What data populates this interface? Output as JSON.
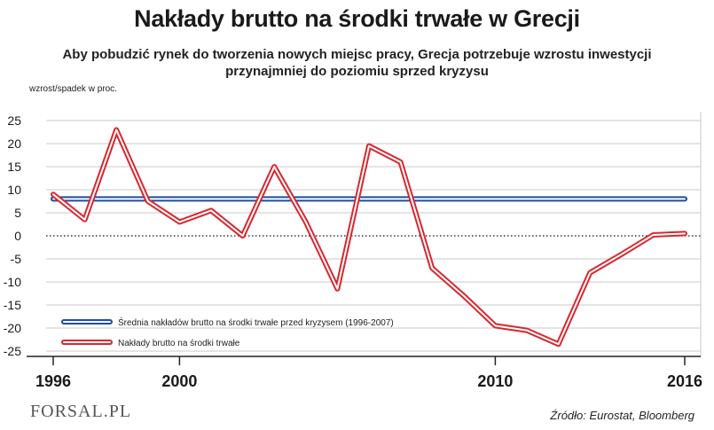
{
  "title": "Nakłady brutto na środki trwałe w Grecji",
  "subtitle": {
    "line1": "Aby pobudzić rynek do tworzenia nowych miejsc pracy, Grecja potrzebuje wzrostu inwestycji",
    "line2": "przynajmniej do poziomiu sprzed kryzysu"
  },
  "logo": "FORSAL.PL",
  "source": "Źródło:  Eurostat, Bloomberg",
  "colors": {
    "series": "#d7282f",
    "average": "#1f4e99",
    "grid": "#c8c8c8"
  },
  "chart_data": {
    "type": "line",
    "ylabel": "wzrost/spadek w proc.",
    "ylim": [
      -25,
      25
    ],
    "yticks": [
      25,
      20,
      15,
      10,
      5,
      0,
      -5,
      -10,
      -15,
      -20,
      -25
    ],
    "xlim": [
      1996,
      2016
    ],
    "xticks": [
      1996,
      2000,
      2010,
      2016
    ],
    "grid": true,
    "zero_line": "dotted",
    "legend_position": "bottom-left",
    "series": [
      {
        "name": "Średnia nakładów brutto na środki trwałe przed kryzysem (1996-2007)",
        "x": [
          1996,
          2016
        ],
        "values": [
          8,
          8
        ]
      },
      {
        "name": "Nakłady brutto na środki trwałe",
        "x": [
          1996,
          1997,
          1998,
          1999,
          2000,
          2001,
          2002,
          2003,
          2004,
          2005,
          2006,
          2007,
          2008,
          2009,
          2010,
          2011,
          2012,
          2013,
          2014,
          2015,
          2016
        ],
        "values": [
          9,
          3.5,
          23,
          7.5,
          3,
          5.5,
          0,
          15,
          3,
          -11.5,
          19.5,
          16,
          -7,
          -13,
          -19.5,
          -20.5,
          -23.5,
          -8,
          -4,
          0.2,
          0.5
        ]
      }
    ]
  }
}
